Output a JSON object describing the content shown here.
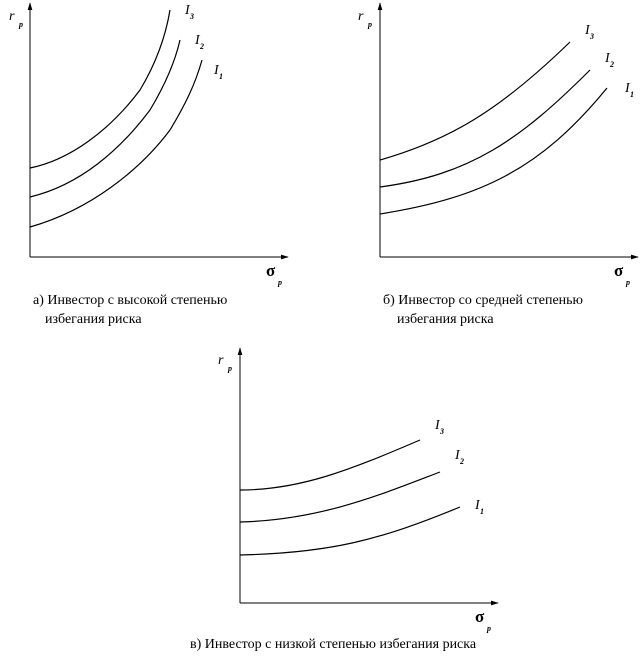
{
  "panels": [
    {
      "caption": [
        "а) Инвестор с высокой степенью",
        "избегания риска"
      ],
      "y_label": "r",
      "y_sub": "p",
      "x_label": "σ",
      "x_sub": "p",
      "curves": [
        {
          "label": "I",
          "sub": "3"
        },
        {
          "label": "I",
          "sub": "2"
        },
        {
          "label": "I",
          "sub": "1"
        }
      ]
    },
    {
      "caption": [
        "б) Инвестор со средней степенью",
        "избегания риска"
      ],
      "y_label": "r",
      "y_sub": "p",
      "x_label": "σ",
      "x_sub": "p",
      "curves": [
        {
          "label": "I",
          "sub": "3"
        },
        {
          "label": "I",
          "sub": "2"
        },
        {
          "label": "I",
          "sub": "1"
        }
      ]
    },
    {
      "caption": [
        "в) Инвестор с низкой степенью избегания риска"
      ],
      "y_label": "r",
      "y_sub": "p",
      "x_label": "σ",
      "x_sub": "p",
      "curves": [
        {
          "label": "I",
          "sub": "3"
        },
        {
          "label": "I",
          "sub": "2"
        },
        {
          "label": "I",
          "sub": "1"
        }
      ]
    }
  ]
}
